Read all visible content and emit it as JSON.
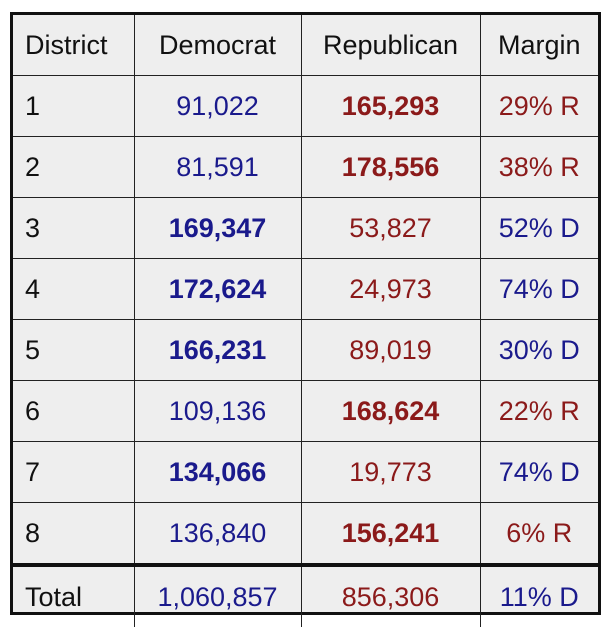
{
  "colors": {
    "democrat": "#1a1a8c",
    "republican": "#8b1a1a",
    "background": "#eeeeee"
  },
  "headers": {
    "district": "District",
    "democrat": "Democrat",
    "republican": "Republican",
    "margin": "Margin"
  },
  "rows": [
    {
      "district": "1",
      "democrat": "91,022",
      "republican": "165,293",
      "margin": "29% R",
      "winner": "R"
    },
    {
      "district": "2",
      "democrat": "81,591",
      "republican": "178,556",
      "margin": "38% R",
      "winner": "R"
    },
    {
      "district": "3",
      "democrat": "169,347",
      "republican": "53,827",
      "margin": "52% D",
      "winner": "D"
    },
    {
      "district": "4",
      "democrat": "172,624",
      "republican": "24,973",
      "margin": "74% D",
      "winner": "D"
    },
    {
      "district": "5",
      "democrat": "166,231",
      "republican": "89,019",
      "margin": "30% D",
      "winner": "D"
    },
    {
      "district": "6",
      "democrat": "109,136",
      "republican": "168,624",
      "margin": "22% R",
      "winner": "R"
    },
    {
      "district": "7",
      "democrat": "134,066",
      "republican": "19,773",
      "margin": "74% D",
      "winner": "D"
    },
    {
      "district": "8",
      "democrat": "136,840",
      "republican": "156,241",
      "margin": "6% R",
      "winner": "R"
    }
  ],
  "total": {
    "label": "Total",
    "democrat": "1,060,857",
    "republican": "856,306",
    "margin": "11% D"
  }
}
